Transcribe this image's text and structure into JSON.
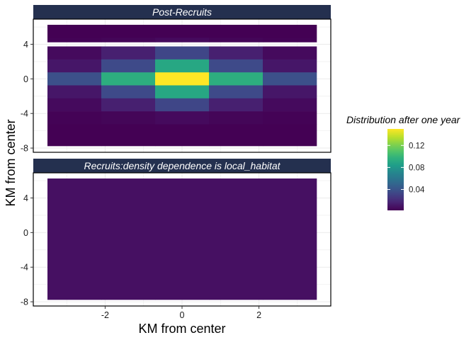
{
  "chart_data": {
    "type": "heatmap",
    "xlabel": "KM from center",
    "ylabel": "KM from center",
    "x_ticks": [
      -2,
      0,
      2
    ],
    "x_tick_labels": [
      "-2",
      "0",
      "2"
    ],
    "y_ticks": [
      -8,
      -4,
      0,
      4
    ],
    "y_tick_labels": [
      "-8",
      "-4",
      "0",
      "4"
    ],
    "xlim": [
      -3.5,
      3.5
    ],
    "ylim": [
      -7.75,
      6.25
    ],
    "x_centers": [
      -2.8,
      -1.4,
      0,
      1.4,
      2.8
    ],
    "cell_width": 1.4,
    "panels": [
      {
        "title": "Post-Recruits",
        "rows": [
          {
            "y": 5.5,
            "height": 1.5,
            "values": [
              0.002,
              0.002,
              0.002,
              0.002,
              0.002
            ]
          },
          {
            "y": 4.5,
            "height": 0.5,
            "values": [
              0.003,
              0.004,
              0.006,
              0.004,
              0.003
            ]
          },
          {
            "y": 3.0,
            "height": 1.5,
            "values": [
              0.006,
              0.015,
              0.033,
              0.015,
              0.006
            ]
          },
          {
            "y": 1.5,
            "height": 1.5,
            "values": [
              0.011,
              0.035,
              0.09,
              0.035,
              0.011
            ]
          },
          {
            "y": 0.0,
            "height": 1.5,
            "values": [
              0.038,
              0.095,
              0.15,
              0.095,
              0.038
            ]
          },
          {
            "y": -1.5,
            "height": 1.5,
            "values": [
              0.011,
              0.035,
              0.09,
              0.035,
              0.011
            ]
          },
          {
            "y": -3.0,
            "height": 1.5,
            "values": [
              0.006,
              0.015,
              0.033,
              0.015,
              0.006
            ]
          },
          {
            "y": -4.5,
            "height": 1.5,
            "values": [
              0.003,
              0.004,
              0.006,
              0.004,
              0.003
            ]
          },
          {
            "y": -6.5,
            "height": 2.5,
            "values": [
              0.002,
              0.002,
              0.002,
              0.002,
              0.002
            ]
          }
        ]
      },
      {
        "title": "Recruits:density dependence is local_habitat",
        "rows": [
          {
            "y": -0.75,
            "height": 14.0,
            "values": [
              0.0085,
              0.0085,
              0.0085,
              0.0085,
              0.0085
            ]
          }
        ]
      }
    ],
    "legend": {
      "title": "Distribution after one year",
      "ticks": [
        0.04,
        0.08,
        0.12
      ],
      "tick_labels": [
        "0.04",
        "0.08",
        "0.12"
      ],
      "range": [
        0.002,
        0.15
      ],
      "colormap": "viridis"
    },
    "grid": true,
    "legend_position": "right"
  },
  "colors": {
    "strip_background": "#24304f",
    "strip_text": "#ffffff",
    "panel_border": "#000000",
    "gridline": "#ebebeb"
  }
}
